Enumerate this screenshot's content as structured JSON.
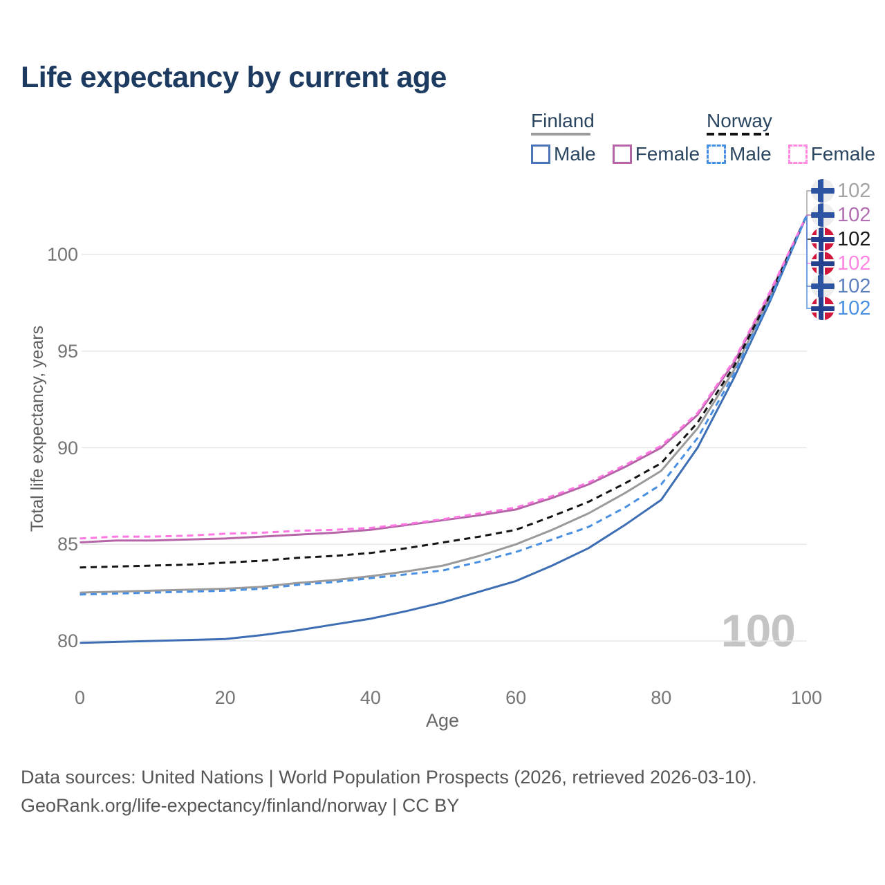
{
  "title": "Life expectancy by current age",
  "legend": {
    "finland": {
      "label": "Finland",
      "male": "Male",
      "female": "Female",
      "male_color": "#4a76b8",
      "female_color": "#b565a7",
      "line_style": "solid"
    },
    "norway": {
      "label": "Norway",
      "male": "Male",
      "female": "Female",
      "male_color": "#4a90e2",
      "female_color": "#ff8ae0",
      "line_style": "dashed"
    }
  },
  "watermark": "100",
  "footer": {
    "line1": "Data sources: United Nations | World Population Prospects (2026, retrieved 2026-03-10).",
    "line2": "GeoRank.org/life-expectancy/finland/norway | CC BY"
  },
  "chart_data": {
    "type": "line",
    "title": "Life expectancy by current age",
    "xlabel": "Age",
    "ylabel": "Total life expectancy, years",
    "xlim": [
      0,
      100
    ],
    "ylim": [
      79,
      103
    ],
    "x_ticks": [
      0,
      20,
      40,
      60,
      80,
      100
    ],
    "y_ticks": [
      80,
      85,
      90,
      95,
      100
    ],
    "grid": "horizontal",
    "legend_position": "top-right",
    "x": [
      0,
      5,
      10,
      15,
      20,
      25,
      30,
      35,
      40,
      45,
      50,
      55,
      60,
      65,
      70,
      75,
      80,
      85,
      90,
      95,
      100
    ],
    "series": [
      {
        "name": "Finland Total",
        "country": "Finland",
        "sex": "total",
        "style": "solid",
        "color": "#9a9a9a",
        "values": [
          82.5,
          82.55,
          82.6,
          82.65,
          82.7,
          82.8,
          83.0,
          83.15,
          83.35,
          83.6,
          83.9,
          84.4,
          85.0,
          85.75,
          86.6,
          87.65,
          88.8,
          91.0,
          94.0,
          97.8,
          102
        ]
      },
      {
        "name": "Finland Female",
        "country": "Finland",
        "sex": "female",
        "style": "solid",
        "color": "#b565a7",
        "values": [
          85.1,
          85.2,
          85.2,
          85.25,
          85.3,
          85.4,
          85.5,
          85.6,
          85.75,
          86.0,
          86.25,
          86.5,
          86.8,
          87.4,
          88.1,
          89.0,
          90.0,
          91.7,
          94.4,
          98.0,
          102
        ]
      },
      {
        "name": "Finland Male",
        "country": "Finland",
        "sex": "male",
        "style": "solid",
        "color": "#3d6eb4",
        "values": [
          79.9,
          79.95,
          80.0,
          80.05,
          80.1,
          80.3,
          80.55,
          80.85,
          81.15,
          81.55,
          82.0,
          82.55,
          83.1,
          83.9,
          84.8,
          86.0,
          87.3,
          90.0,
          93.6,
          97.6,
          102
        ]
      },
      {
        "name": "Norway Total",
        "country": "Norway",
        "sex": "total",
        "style": "dashed",
        "color": "#141414",
        "values": [
          83.8,
          83.85,
          83.9,
          83.95,
          84.05,
          84.15,
          84.3,
          84.4,
          84.55,
          84.8,
          85.1,
          85.4,
          85.75,
          86.45,
          87.2,
          88.15,
          89.2,
          91.3,
          94.2,
          97.9,
          102
        ]
      },
      {
        "name": "Norway Female",
        "country": "Norway",
        "sex": "female",
        "style": "dashed",
        "color": "#ff77e2",
        "values": [
          85.3,
          85.4,
          85.4,
          85.45,
          85.55,
          85.6,
          85.7,
          85.75,
          85.85,
          86.05,
          86.3,
          86.6,
          86.9,
          87.5,
          88.2,
          89.1,
          90.1,
          91.8,
          94.5,
          98.1,
          102
        ]
      },
      {
        "name": "Norway Male",
        "country": "Norway",
        "sex": "male",
        "style": "dashed",
        "color": "#4a90e2",
        "values": [
          82.4,
          82.45,
          82.5,
          82.55,
          82.6,
          82.7,
          82.9,
          83.05,
          83.25,
          83.45,
          83.65,
          84.1,
          84.6,
          85.25,
          85.9,
          86.9,
          88.1,
          90.5,
          93.8,
          97.7,
          102
        ]
      }
    ],
    "end_labels": [
      {
        "flag": "finland",
        "series": "Finland Total",
        "value": "102",
        "color": "#a3a3a3"
      },
      {
        "flag": "finland",
        "series": "Finland Female",
        "value": "102",
        "color": "#b16fb1"
      },
      {
        "flag": "norway",
        "series": "Norway Total",
        "value": "102",
        "color": "#181818"
      },
      {
        "flag": "norway",
        "series": "Norway Female",
        "value": "102",
        "color": "#ff85e3"
      },
      {
        "flag": "finland",
        "series": "Finland Male",
        "value": "102",
        "color": "#5c7fbe"
      },
      {
        "flag": "norway",
        "series": "Norway Male",
        "value": "102",
        "color": "#4a90e2"
      }
    ]
  }
}
